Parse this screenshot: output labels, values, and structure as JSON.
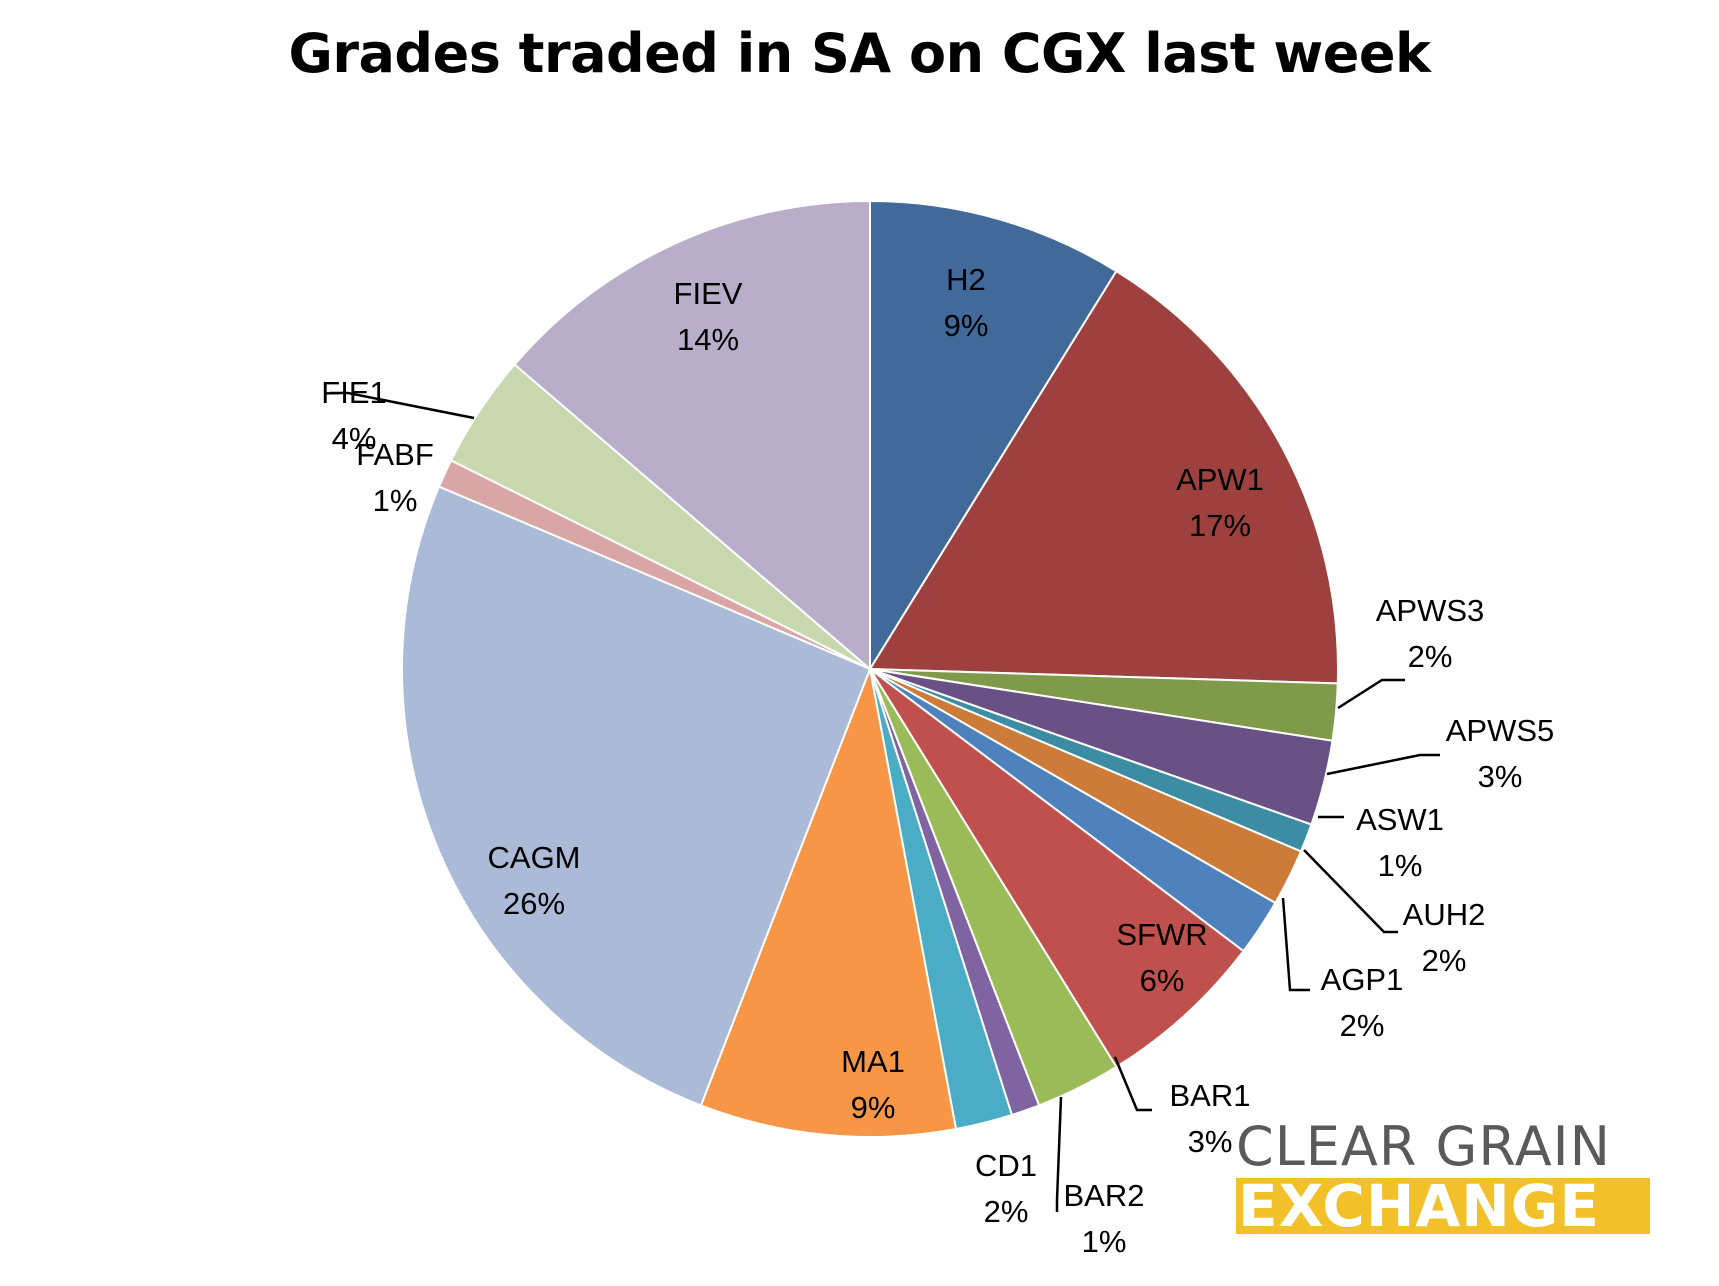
{
  "chart_data": {
    "type": "pie",
    "title": "Grades traded in SA on CGX last week",
    "slices": [
      {
        "label": "H2",
        "value": 9,
        "value_label": "9%",
        "color": "#416999"
      },
      {
        "label": "APW1",
        "value": 17,
        "value_label": "17%",
        "color": "#9e413e"
      },
      {
        "label": "APWS3",
        "value": 2,
        "value_label": "2%",
        "color": "#7f9a48"
      },
      {
        "label": "APWS5",
        "value": 3,
        "value_label": "3%",
        "color": "#695185"
      },
      {
        "label": "ASW1",
        "value": 1,
        "value_label": "1%",
        "color": "#3c8da3"
      },
      {
        "label": "AUH2",
        "value": 2,
        "value_label": "2%",
        "color": "#cc7b38"
      },
      {
        "label": "AGP1",
        "value": 2,
        "value_label": "2%",
        "color": "#4f81bd"
      },
      {
        "label": "SFWR",
        "value": 6,
        "value_label": "6%",
        "color": "#c0504d"
      },
      {
        "label": "BAR1",
        "value": 3,
        "value_label": "3%",
        "color": "#9bbb59"
      },
      {
        "label": "BAR2",
        "value": 1,
        "value_label": "1%",
        "color": "#8064a2"
      },
      {
        "label": "CD1",
        "value": 2,
        "value_label": "2%",
        "color": "#4bacc6"
      },
      {
        "label": "MA1",
        "value": 9,
        "value_label": "9%",
        "color": "#f79646"
      },
      {
        "label": "CAGM",
        "value": 26,
        "value_label": "26%",
        "color": "#aabad7"
      },
      {
        "label": "FABF",
        "value": 1,
        "value_label": "1%",
        "color": "#d9a6a5"
      },
      {
        "label": "FIE1",
        "value": 4,
        "value_label": "4%",
        "color": "#c8d7ad"
      },
      {
        "label": "FIEV",
        "value": 14,
        "value_label": "14%",
        "color": "#b9aec9"
      }
    ],
    "legend": "none",
    "data_labels": "category name and percentage"
  },
  "logo": {
    "line1": "CLEAR GRAIN",
    "line2": "EXCHANGE",
    "line1_color": "#5a5a5a",
    "line2_background": "#f2c029"
  }
}
